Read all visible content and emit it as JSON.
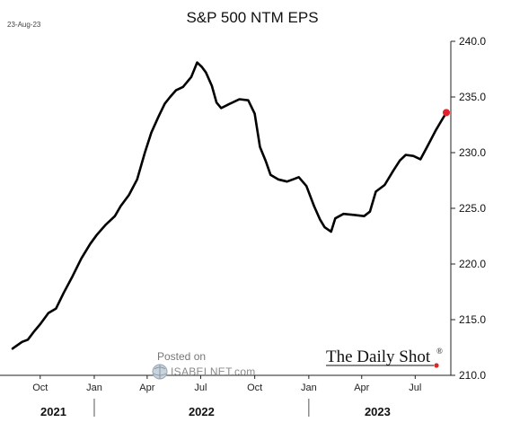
{
  "header": {
    "date_stamp": "23-Aug-23"
  },
  "watermark": {
    "posted_on": "Posted on",
    "site": "ISABELNET.com"
  },
  "brand": {
    "name": "The Daily Shot",
    "mark": "®",
    "dot_color": "#d9262a"
  },
  "chart_data": {
    "type": "line",
    "title": "S&P 500 NTM EPS",
    "xlabel": "",
    "ylabel": "",
    "x_range": [
      "2021-08-15",
      "2023-08-23"
    ],
    "ylim": [
      210,
      240
    ],
    "y_axis_position": "right",
    "yticks": [
      210,
      215,
      220,
      225,
      230,
      235,
      240
    ],
    "ytick_labels": [
      "210.0",
      "215.0",
      "220.0",
      "225.0",
      "230.0",
      "235.0",
      "240.0"
    ],
    "xticks": [
      {
        "date": "2021-10-01",
        "label": "Oct"
      },
      {
        "date": "2022-01-01",
        "label": "Jan"
      },
      {
        "date": "2022-04-01",
        "label": "Apr"
      },
      {
        "date": "2022-07-01",
        "label": "Jul"
      },
      {
        "date": "2022-10-01",
        "label": "Oct"
      },
      {
        "date": "2023-01-01",
        "label": "Jan"
      },
      {
        "date": "2023-04-01",
        "label": "Apr"
      },
      {
        "date": "2023-07-01",
        "label": "Jul"
      }
    ],
    "year_labels": [
      {
        "label": "2021",
        "from": "2021-08-15",
        "to": "2022-01-01"
      },
      {
        "label": "2022",
        "from": "2022-01-01",
        "to": "2023-01-01"
      },
      {
        "label": "2023",
        "from": "2023-01-01",
        "to": "2023-08-23"
      }
    ],
    "grid": false,
    "legend": "none",
    "series": [
      {
        "color": "#000000",
        "end_marker_color": "#e0232b",
        "points": [
          [
            "2021-08-15",
            212.4
          ],
          [
            "2021-08-31",
            213.0
          ],
          [
            "2021-09-10",
            213.2
          ],
          [
            "2021-09-20",
            213.9
          ],
          [
            "2021-10-01",
            214.6
          ],
          [
            "2021-10-15",
            215.6
          ],
          [
            "2021-10-28",
            216.0
          ],
          [
            "2021-11-10",
            217.4
          ],
          [
            "2021-11-25",
            218.9
          ],
          [
            "2021-12-10",
            220.5
          ],
          [
            "2021-12-25",
            221.8
          ],
          [
            "2022-01-05",
            222.6
          ],
          [
            "2022-01-20",
            223.5
          ],
          [
            "2022-02-05",
            224.3
          ],
          [
            "2022-02-15",
            225.2
          ],
          [
            "2022-03-01",
            226.2
          ],
          [
            "2022-03-15",
            227.6
          ],
          [
            "2022-03-28",
            230.0
          ],
          [
            "2022-04-08",
            231.8
          ],
          [
            "2022-04-20",
            233.2
          ],
          [
            "2022-05-01",
            234.4
          ],
          [
            "2022-05-10",
            235.0
          ],
          [
            "2022-05-20",
            235.6
          ],
          [
            "2022-06-01",
            235.9
          ],
          [
            "2022-06-15",
            236.8
          ],
          [
            "2022-06-25",
            238.1
          ],
          [
            "2022-07-03",
            237.7
          ],
          [
            "2022-07-10",
            237.2
          ],
          [
            "2022-07-20",
            236.0
          ],
          [
            "2022-07-28",
            234.5
          ],
          [
            "2022-08-05",
            234.0
          ],
          [
            "2022-08-20",
            234.4
          ],
          [
            "2022-09-05",
            234.8
          ],
          [
            "2022-09-20",
            234.7
          ],
          [
            "2022-10-01",
            233.5
          ],
          [
            "2022-10-10",
            230.5
          ],
          [
            "2022-10-20",
            229.2
          ],
          [
            "2022-10-28",
            228.0
          ],
          [
            "2022-11-10",
            227.6
          ],
          [
            "2022-11-25",
            227.4
          ],
          [
            "2022-12-05",
            227.6
          ],
          [
            "2022-12-15",
            227.8
          ],
          [
            "2022-12-28",
            227.0
          ],
          [
            "2023-01-10",
            225.2
          ],
          [
            "2023-01-20",
            224.0
          ],
          [
            "2023-01-28",
            223.3
          ],
          [
            "2023-02-08",
            222.9
          ],
          [
            "2023-02-15",
            224.1
          ],
          [
            "2023-03-01",
            224.5
          ],
          [
            "2023-03-20",
            224.4
          ],
          [
            "2023-04-05",
            224.3
          ],
          [
            "2023-04-15",
            224.7
          ],
          [
            "2023-04-25",
            226.5
          ],
          [
            "2023-05-10",
            227.1
          ],
          [
            "2023-05-25",
            228.4
          ],
          [
            "2023-06-05",
            229.3
          ],
          [
            "2023-06-15",
            229.8
          ],
          [
            "2023-06-28",
            229.7
          ],
          [
            "2023-07-10",
            229.4
          ],
          [
            "2023-07-22",
            230.6
          ],
          [
            "2023-08-05",
            232.0
          ],
          [
            "2023-08-15",
            232.9
          ],
          [
            "2023-08-23",
            233.6
          ]
        ]
      }
    ]
  }
}
